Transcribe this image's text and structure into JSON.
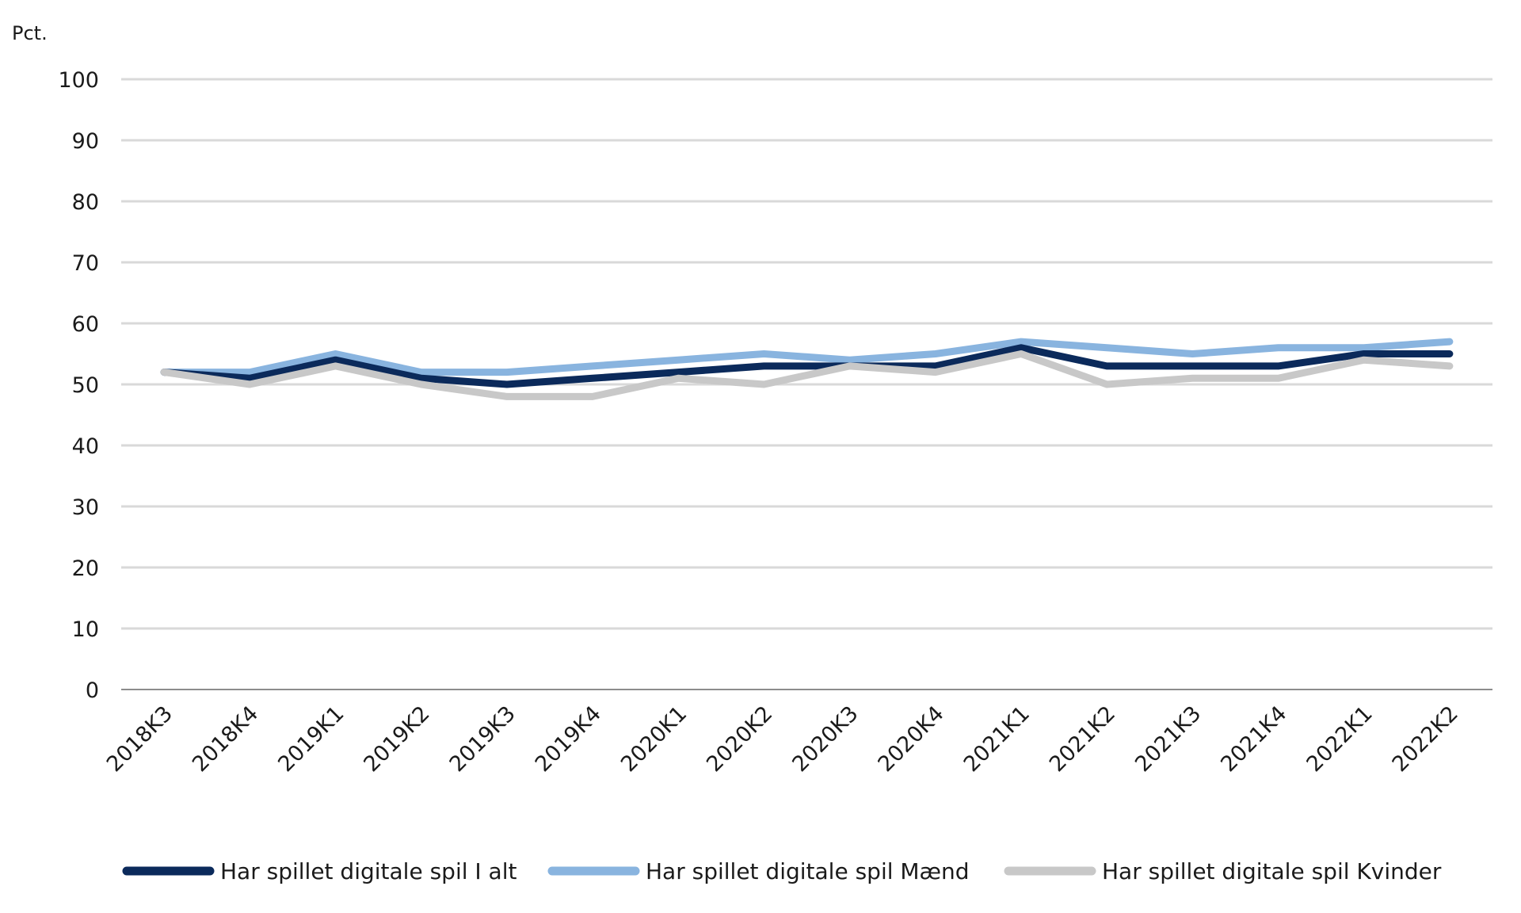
{
  "chart_data": {
    "type": "line",
    "title": "",
    "ylabel": "Pct.",
    "xlabel": "",
    "ylim": [
      0,
      100
    ],
    "yticks": [
      0,
      10,
      20,
      30,
      40,
      50,
      60,
      70,
      80,
      90,
      100
    ],
    "categories": [
      "2018K3",
      "2018K4",
      "2019K1",
      "2019K2",
      "2019K3",
      "2019K4",
      "2020K1",
      "2020K2",
      "2020K3",
      "2020K4",
      "2021K1",
      "2021K2",
      "2021K3",
      "2021K4",
      "2022K1",
      "2022K2"
    ],
    "grid": true,
    "legend_position": "bottom",
    "series": [
      {
        "name": "Har spillet digitale spil I alt",
        "color": "#0b2a5b",
        "values": [
          52,
          51,
          54,
          51,
          50,
          51,
          52,
          53,
          53,
          53,
          56,
          53,
          53,
          53,
          55,
          55
        ]
      },
      {
        "name": "Har spillet digitale spil Mænd",
        "color": "#89b4df",
        "values": [
          52,
          52,
          55,
          52,
          52,
          53,
          54,
          55,
          54,
          55,
          57,
          56,
          55,
          56,
          56,
          57
        ]
      },
      {
        "name": "Har spillet digitale spil Kvinder",
        "color": "#c8c8c8",
        "values": [
          52,
          50,
          53,
          50,
          48,
          48,
          51,
          50,
          53,
          52,
          55,
          50,
          51,
          51,
          54,
          53
        ]
      }
    ]
  }
}
